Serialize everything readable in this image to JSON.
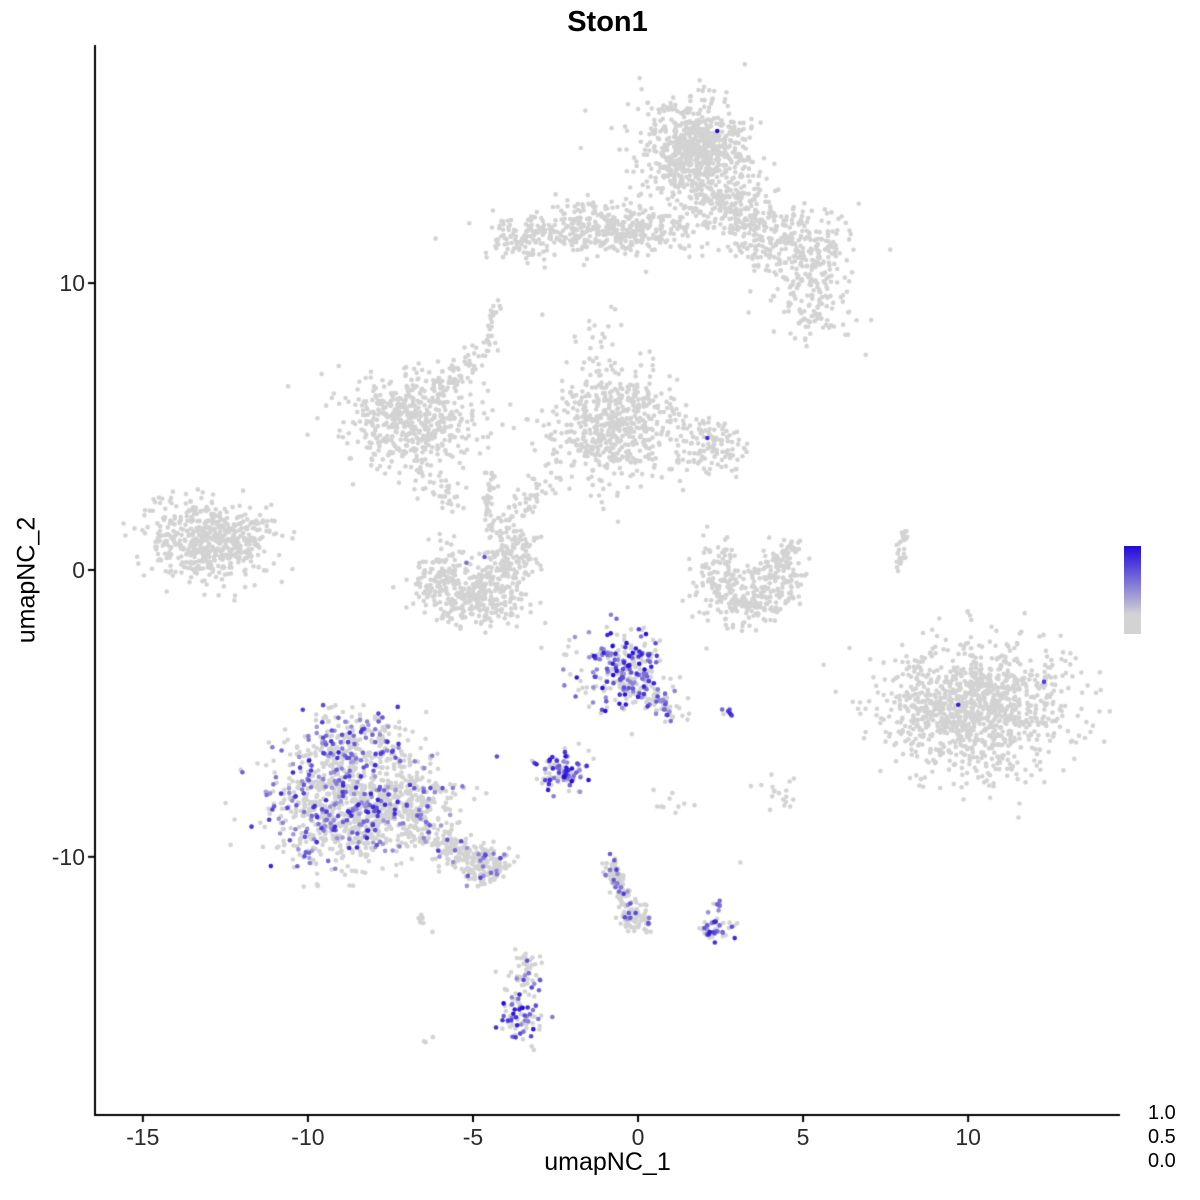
{
  "chart_data": {
    "type": "scatter",
    "title": "Ston1",
    "xlabel": "umapNC_1",
    "ylabel": "umapNC_2",
    "xlim": [
      -16.45,
      14.6
    ],
    "ylim": [
      -19.0,
      18.3
    ],
    "grid": false,
    "x_ticks": [
      {
        "value": -15,
        "label": "-15"
      },
      {
        "value": -10,
        "label": "-10"
      },
      {
        "value": -5,
        "label": "-5"
      },
      {
        "value": 0,
        "label": "0"
      },
      {
        "value": 5,
        "label": "5"
      },
      {
        "value": 10,
        "label": "10"
      }
    ],
    "y_ticks": [
      {
        "value": 10,
        "label": "10"
      },
      {
        "value": 0,
        "label": "0"
      },
      {
        "value": -10,
        "label": "-10"
      }
    ],
    "colors": {
      "low": "#D3D3D3",
      "high": "#2209DD"
    },
    "point_radius": 2.3,
    "legend": {
      "position": "right",
      "ticks": [
        {
          "label": "1.0"
        },
        {
          "label": "0.5"
        },
        {
          "label": "0.0"
        }
      ]
    },
    "clusters": [
      {
        "shape": "gauss",
        "n": 650,
        "cx": 1.8,
        "cy": 14.6,
        "sx": 0.75,
        "sy": 0.85
      },
      {
        "shape": "gauss",
        "n": 120,
        "cx": 1.8,
        "cy": 14.4,
        "sx": 1.2,
        "sy": 1.1
      },
      {
        "shape": "gauss",
        "n": 110,
        "cx": 2.5,
        "cy": 12.7,
        "sx": 0.55,
        "sy": 0.45
      },
      {
        "shape": "gauss",
        "n": 150,
        "cx": 4.0,
        "cy": 11.8,
        "sx": 0.7,
        "sy": 0.55
      },
      {
        "shape": "gauss",
        "n": 160,
        "cx": 5.2,
        "cy": 11.1,
        "sx": 0.75,
        "sy": 0.6
      },
      {
        "shape": "gauss",
        "n": 130,
        "cx": 5.3,
        "cy": 9.4,
        "sx": 0.65,
        "sy": 0.75
      },
      {
        "shape": "gauss",
        "n": 50,
        "cx": 3.1,
        "cy": 12.6,
        "sx": 0.5,
        "sy": 0.4
      },
      {
        "shape": "gauss",
        "n": 420,
        "cx": -0.9,
        "cy": 11.8,
        "sx": 1.55,
        "sy": 0.4
      },
      {
        "shape": "gauss",
        "n": 80,
        "cx": -3.4,
        "cy": 11.4,
        "sx": 0.45,
        "sy": 0.35
      },
      {
        "shape": "gauss",
        "n": 22,
        "cx": -0.3,
        "cy": 12.5,
        "sx": 0.8,
        "sy": 0.28
      },
      {
        "shape": "line",
        "n": 25,
        "x1": -4.55,
        "y1": 7.6,
        "x2": -4.3,
        "y2": 9.4,
        "jitter": 0.08
      },
      {
        "shape": "line",
        "n": 18,
        "x1": -1.8,
        "y1": 7.2,
        "x2": -0.8,
        "y2": 9.2,
        "jitter": 0.3
      },
      {
        "shape": "gauss",
        "n": 520,
        "cx": -6.9,
        "cy": 5.2,
        "sx": 1.0,
        "sy": 0.8
      },
      {
        "shape": "line",
        "n": 65,
        "x1": -6.1,
        "y1": 6.2,
        "x2": -4.7,
        "y2": 7.6,
        "jitter": 0.22
      },
      {
        "shape": "line",
        "n": 40,
        "x1": -6.6,
        "y1": 3.5,
        "x2": -5.5,
        "y2": 2.3,
        "jitter": 0.28
      },
      {
        "shape": "gauss",
        "n": 560,
        "cx": -0.7,
        "cy": 5.0,
        "sx": 1.0,
        "sy": 0.95
      },
      {
        "shape": "gauss",
        "n": 115,
        "cx": 2.2,
        "cy": 4.3,
        "sx": 0.55,
        "sy": 0.45
      },
      {
        "shape": "line",
        "n": 70,
        "x1": -2.3,
        "y1": 3.3,
        "x2": -4.7,
        "y2": 1.2,
        "jitter": 0.28
      },
      {
        "shape": "line",
        "n": 35,
        "x1": -4.6,
        "y1": 1.7,
        "x2": -4.4,
        "y2": 3.3,
        "jitter": 0.12
      },
      {
        "shape": "gauss",
        "n": 520,
        "cx": -13.1,
        "cy": 1.0,
        "sx": 0.95,
        "sy": 0.7,
        "rot": -12
      },
      {
        "shape": "gauss",
        "n": 40,
        "cx": -11.7,
        "cy": 1.6,
        "sx": 0.5,
        "sy": 0.35
      },
      {
        "shape": "gauss",
        "n": 115,
        "cx": -6.0,
        "cy": -0.2,
        "sx": 0.45,
        "sy": 0.55
      },
      {
        "shape": "gauss",
        "n": 250,
        "cx": -4.9,
        "cy": -1.05,
        "sx": 0.75,
        "sy": 0.45
      },
      {
        "shape": "gauss",
        "n": 145,
        "cx": -3.9,
        "cy": 0.1,
        "sx": 0.45,
        "sy": 0.55
      },
      {
        "shape": "line",
        "n": 35,
        "x1": -4.2,
        "y1": 0.6,
        "x2": -3.4,
        "y2": 1.2,
        "jitter": 0.2
      },
      {
        "shape": "gauss",
        "n": 85,
        "cx": 2.5,
        "cy": 0.0,
        "sx": 0.4,
        "sy": 0.5
      },
      {
        "shape": "gauss",
        "n": 165,
        "cx": 3.2,
        "cy": -1.1,
        "sx": 0.7,
        "sy": 0.4
      },
      {
        "shape": "gauss",
        "n": 115,
        "cx": 4.2,
        "cy": -0.2,
        "sx": 0.4,
        "sy": 0.55
      },
      {
        "shape": "line",
        "n": 28,
        "x1": 4.4,
        "y1": 0.3,
        "x2": 4.7,
        "y2": 0.9,
        "jitter": 0.15
      },
      {
        "shape": "line",
        "n": 30,
        "x1": 7.9,
        "y1": 0.1,
        "x2": 8.1,
        "y2": 1.4,
        "jitter": 0.07
      },
      {
        "shape": "gauss",
        "n": 1050,
        "cx": 10.3,
        "cy": -4.8,
        "sx": 1.3,
        "sy": 1.15
      },
      {
        "shape": "gauss",
        "n": 55,
        "cx": 8.5,
        "cy": -4.6,
        "sx": 0.45,
        "sy": 0.8
      },
      {
        "shape": "gauss",
        "n": 270,
        "cx": -0.4,
        "cy": -3.5,
        "sx": 0.78,
        "sy": 0.72,
        "expr_frac": 0.45,
        "expr_min": 0.3,
        "expr_max": 1.0
      },
      {
        "shape": "line",
        "n": 55,
        "x1": 0.4,
        "y1": -4.4,
        "x2": 1.3,
        "y2": -5.2,
        "jitter": 0.18,
        "expr_frac": 0.3,
        "expr_min": 0.3,
        "expr_max": 0.8
      },
      {
        "shape": "gauss",
        "n": 7,
        "cx": 2.75,
        "cy": -5.0,
        "sx": 0.12,
        "sy": 0.1,
        "expr_frac": 0.7,
        "expr_min": 0.5,
        "expr_max": 0.9
      },
      {
        "shape": "gauss",
        "n": 85,
        "cx": -2.3,
        "cy": -7.05,
        "sx": 0.33,
        "sy": 0.3,
        "expr_frac": 0.55,
        "expr_min": 0.3,
        "expr_max": 1.0
      },
      {
        "shape": "gauss",
        "n": 22,
        "cx": -2.2,
        "cy": -6.6,
        "sx": 0.65,
        "sy": 0.45,
        "expr_frac": 0.2,
        "expr_min": 0.3,
        "expr_max": 0.7
      },
      {
        "shape": "gauss",
        "n": 240,
        "cx": -8.6,
        "cy": -6.1,
        "sx": 0.85,
        "sy": 0.65,
        "expr_frac": 0.3,
        "expr_min": 0.25,
        "expr_max": 0.85
      },
      {
        "shape": "gauss",
        "n": 850,
        "cx": -8.9,
        "cy": -8.3,
        "sx": 1.2,
        "sy": 1.0,
        "expr_frac": 0.25,
        "expr_min": 0.25,
        "expr_max": 0.9
      },
      {
        "shape": "gauss",
        "n": 260,
        "cx": -6.9,
        "cy": -8.2,
        "sx": 0.85,
        "sy": 0.8,
        "expr_frac": 0.12,
        "expr_min": 0.25,
        "expr_max": 0.8
      },
      {
        "shape": "line",
        "n": 170,
        "x1": -6.2,
        "y1": -9.3,
        "x2": -4.4,
        "y2": -10.5,
        "jitter": 0.3,
        "expr_frac": 0.06,
        "expr_min": 0.3,
        "expr_max": 0.7
      },
      {
        "shape": "gauss",
        "n": 90,
        "cx": -4.5,
        "cy": -10.3,
        "sx": 0.4,
        "sy": 0.38,
        "expr_frac": 0.08,
        "expr_min": 0.3,
        "expr_max": 0.7
      },
      {
        "shape": "line",
        "n": 8,
        "x1": -6.7,
        "y1": -12.0,
        "x2": -6.4,
        "y2": -12.6,
        "jitter": 0.1
      },
      {
        "shape": "gauss",
        "n": 3,
        "cx": -6.4,
        "cy": -16.4,
        "sx": 0.15,
        "sy": 0.1
      },
      {
        "shape": "line",
        "n": 125,
        "x1": -0.9,
        "y1": -10.3,
        "x2": -0.1,
        "y2": -12.1,
        "jitter": 0.16,
        "expr_frac": 0.12,
        "expr_min": 0.3,
        "expr_max": 0.8
      },
      {
        "shape": "gauss",
        "n": 50,
        "cx": -0.1,
        "cy": -12.3,
        "sx": 0.3,
        "sy": 0.25,
        "expr_frac": 0.15,
        "expr_min": 0.3,
        "expr_max": 0.8
      },
      {
        "shape": "gauss",
        "n": 45,
        "cx": 2.3,
        "cy": -12.6,
        "sx": 0.27,
        "sy": 0.27,
        "expr_frac": 0.4,
        "expr_min": 0.3,
        "expr_max": 0.95
      },
      {
        "shape": "gauss",
        "n": 6,
        "cx": 2.5,
        "cy": -11.7,
        "sx": 0.12,
        "sy": 0.15,
        "expr_frac": 0.3,
        "expr_min": 0.3,
        "expr_max": 0.6
      },
      {
        "shape": "gauss",
        "n": 60,
        "cx": -3.45,
        "cy": -14.2,
        "sx": 0.26,
        "sy": 0.5,
        "expr_frac": 0.1,
        "expr_min": 0.3,
        "expr_max": 0.7
      },
      {
        "shape": "gauss",
        "n": 70,
        "cx": -3.5,
        "cy": -15.5,
        "sx": 0.3,
        "sy": 0.45,
        "expr_frac": 0.5,
        "expr_min": 0.35,
        "expr_max": 1.0
      },
      {
        "shape": "gauss",
        "n": 18,
        "cx": 4.25,
        "cy": -7.7,
        "sx": 0.3,
        "sy": 0.25
      },
      {
        "shape": "gauss",
        "n": 10,
        "cx": 0.8,
        "cy": -8.1,
        "sx": 0.35,
        "sy": 0.3
      }
    ],
    "singles_gray": [
      [
        -10.6,
        6.4
      ],
      [
        -2.9,
        8.9
      ],
      [
        6.9,
        7.5
      ],
      [
        3.1,
        -10.2
      ],
      [
        -11.9,
        -0.6
      ]
    ],
    "singles_expressing": [
      [
        2.4,
        15.3,
        1.0
      ],
      [
        2.1,
        4.6,
        0.85
      ],
      [
        9.7,
        -4.7,
        0.9
      ],
      [
        12.3,
        -3.9,
        0.75
      ],
      [
        -5.2,
        0.25,
        0.5
      ],
      [
        -4.65,
        0.45,
        0.65
      ],
      [
        -0.85,
        -9.9,
        0.6
      ]
    ]
  }
}
